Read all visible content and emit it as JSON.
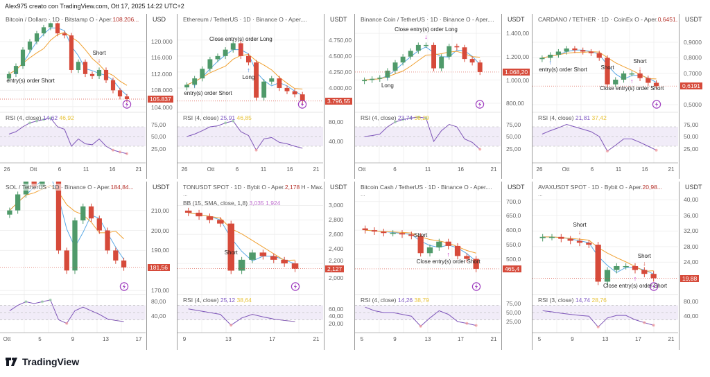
{
  "credit": "Alex975 creato con TradingView.com, Ott 17, 2025 14:22 UTC+2",
  "logo": {
    "text": "TradingView"
  },
  "colors": {
    "up": "#4f9a6a",
    "down": "#d64a3a",
    "rsi": "#7e57c2",
    "rsi_ma": "#e8c33a",
    "ma_fast": "#5aa9e6",
    "ma_slow": "#f0a030",
    "last_price_bg": "#d64a3a"
  },
  "chart_data": [
    {
      "type": "candlestick",
      "title": "Bitcoin / Dollaro · 1D · Bitstamp  O - Aper.",
      "open_value": "108.206...",
      "currency": "USD",
      "last_label": "105.837",
      "last": 105837,
      "closes": [
        112000,
        114000,
        118000,
        120000,
        122000,
        123500,
        124500,
        122000,
        121500,
        113000,
        115000,
        112000,
        111500,
        113000,
        110500,
        108000,
        106500,
        105837
      ],
      "ylim": [
        102600,
        126800
      ],
      "ticks": [
        {
          "v": 120000,
          "l": "120.000"
        },
        {
          "v": 116000,
          "l": "116.000"
        },
        {
          "v": 112000,
          "l": "112.000"
        },
        {
          "v": 108000,
          "l": "108.000"
        },
        {
          "v": 104000,
          "l": "104.000"
        }
      ],
      "rsi": {
        "label": "RSI (4, close)",
        "v1": "14,62",
        "v2": "46,92",
        "ticks": [
          {
            "v": 75,
            "l": "75,00"
          },
          {
            "v": 50,
            "l": "50,00"
          },
          {
            "v": 25,
            "l": "25,00"
          }
        ],
        "values": [
          55,
          60,
          70,
          78,
          82,
          85,
          88,
          70,
          65,
          30,
          45,
          35,
          33,
          45,
          30,
          22,
          18,
          14.62
        ]
      },
      "xticks": [
        "26",
        "Ott",
        "6",
        "11",
        "16",
        "21"
      ],
      "annotations": [
        {
          "text": "Short",
          "i": 13,
          "pos": "above"
        },
        {
          "text": "entry(s) order Short",
          "i": 1,
          "pos": "below"
        }
      ]
    },
    {
      "type": "candlestick",
      "title": "Ethereum / TetherUS · 1D · Binance  O - Aper....",
      "open_value": "",
      "currency": "USDT",
      "last_label": "3.796,55",
      "last": 3796.55,
      "closes": [
        4050,
        4150,
        4300,
        4450,
        4500,
        4600,
        4700,
        4500,
        4400,
        3850,
        4100,
        4150,
        4000,
        3950,
        3900,
        3796.55
      ],
      "ylim": [
        3620,
        5160
      ],
      "ticks": [
        {
          "v": 4750,
          "l": "4.750,00"
        },
        {
          "v": 4500,
          "l": "4.500,00"
        },
        {
          "v": 4250,
          "l": "4.250,00"
        },
        {
          "v": 4000,
          "l": "4.000,00"
        }
      ],
      "rsi": {
        "label": "RSI (4, close)",
        "v1": "25,91",
        "v2": "46,85",
        "ticks": [
          {
            "v": 80,
            "l": "80,00"
          },
          {
            "v": 40,
            "l": "40,00"
          }
        ],
        "values": [
          50,
          55,
          62,
          70,
          72,
          78,
          82,
          60,
          52,
          22,
          45,
          48,
          38,
          35,
          30,
          25.91
        ]
      },
      "xticks": [
        "26",
        "Ott",
        "6",
        "11",
        "16",
        "21"
      ],
      "annotations": [
        {
          "text": "Close entry(s) order Long",
          "i": 7,
          "pos": "above"
        },
        {
          "text": "Long",
          "i": 8,
          "pos": "below"
        },
        {
          "text": "entry(s) order Short",
          "i": 1,
          "pos": "below"
        }
      ]
    },
    {
      "type": "candlestick",
      "title": "Binance Coin / TetherUS · 1D · Binance  O - Aper....",
      "open_value": "",
      "currency": "USDT",
      "last_label": "1.068,20",
      "last": 1068.2,
      "closes": [
        1000,
        1010,
        1020,
        1080,
        1150,
        1200,
        1250,
        1300,
        1300,
        1100,
        1200,
        1290,
        1280,
        1180,
        1150,
        1068.2
      ],
      "ylim": [
        723,
        1567
      ],
      "ticks": [
        {
          "v": 1400,
          "l": "1.400,00"
        },
        {
          "v": 1200,
          "l": "1.200,00"
        },
        {
          "v": 1000,
          "l": "1.000,00"
        },
        {
          "v": 800,
          "l": "800,00"
        }
      ],
      "rsi": {
        "label": "RSI (4, close)",
        "v1": "23,74",
        "v2": "38,29",
        "ticks": [
          {
            "v": 75,
            "l": "75,00"
          },
          {
            "v": 50,
            "l": "50,00"
          },
          {
            "v": 25,
            "l": "25,00"
          }
        ],
        "values": [
          50,
          52,
          55,
          70,
          80,
          85,
          88,
          90,
          88,
          40,
          62,
          75,
          70,
          45,
          38,
          23.74
        ]
      },
      "xticks": [
        "Ott",
        "6",
        "11",
        "16",
        "21"
      ],
      "annotations": [
        {
          "text": "Close entry(s) order Long",
          "i": 8,
          "pos": "above"
        },
        {
          "text": "Long",
          "i": 3,
          "pos": "below"
        }
      ]
    },
    {
      "type": "candlestick",
      "title": "CARDANO / TETHER · 1D · CoinEx  O - Aper.",
      "open_value": "0,6451...",
      "currency": "USDT",
      "last_label": "0,6191",
      "last": 0.6191,
      "closes": [
        0.8,
        0.82,
        0.84,
        0.86,
        0.85,
        0.84,
        0.83,
        0.8,
        0.63,
        0.66,
        0.7,
        0.7,
        0.67,
        0.64,
        0.6191
      ],
      "ylim": [
        0.451,
        1.082
      ],
      "ticks": [
        {
          "v": 0.9,
          "l": "0,9000"
        },
        {
          "v": 0.8,
          "l": "0,8000"
        },
        {
          "v": 0.7,
          "l": "0,7000"
        },
        {
          "v": 0.5,
          "l": "0,5000"
        }
      ],
      "rsi": {
        "label": "RSI (4, close)",
        "v1": "21,81",
        "v2": "37,42",
        "ticks": [
          {
            "v": 75,
            "l": "75,00"
          },
          {
            "v": 50,
            "l": "50,00"
          },
          {
            "v": 25,
            "l": "25,00"
          }
        ],
        "values": [
          55,
          62,
          68,
          75,
          70,
          65,
          60,
          50,
          20,
          32,
          45,
          45,
          38,
          30,
          21.81
        ]
      },
      "xticks": [
        "26",
        "Ott",
        "6",
        "11",
        "16",
        "21"
      ],
      "annotations": [
        {
          "text": "Short",
          "i": 8,
          "pos": "above"
        },
        {
          "text": "Short",
          "i": 12,
          "pos": "above"
        },
        {
          "text": "entry(s) order Short",
          "i": 1,
          "pos": "below"
        },
        {
          "text": "Close entry(s) order Short",
          "i": 11,
          "pos": "below"
        }
      ]
    },
    {
      "type": "candlestick",
      "title": "SOL / TetherUS · 1D · Binance  O - Aper.",
      "open_value": "184,84...",
      "currency": "USDT",
      "last_label": "181,56",
      "last": 181.56,
      "closes": [
        210,
        218,
        225,
        222,
        228,
        232,
        190,
        180,
        205,
        212,
        206,
        200,
        190,
        185,
        181.56
      ],
      "ylim": [
        168,
        224.4
      ],
      "ticks": [
        {
          "v": 210,
          "l": "210,00"
        },
        {
          "v": 200,
          "l": "200,00"
        },
        {
          "v": 190,
          "l": "190,00"
        },
        {
          "v": 170,
          "l": "170,00"
        }
      ],
      "rsi": {
        "label": "",
        "v1": "",
        "v2": "",
        "ticks": [
          {
            "v": 80,
            "l": "80,00"
          },
          {
            "v": 40,
            "l": "40,00"
          }
        ],
        "values": [
          55,
          70,
          80,
          75,
          80,
          85,
          30,
          20,
          55,
          65,
          55,
          45,
          32,
          28,
          25
        ]
      },
      "xticks": [
        "Ott",
        "5",
        "9",
        "13",
        "17"
      ],
      "ellipsis": "",
      "annotations": []
    },
    {
      "type": "candlestick",
      "title": "TONUSDT SPOT · 1D · Bybit  O - Aper.",
      "open_value": "2,178",
      "title_suffix": " H - Max...",
      "currency": "USDT",
      "last_label": "2,127",
      "last": 2.127,
      "closes": [
        2.9,
        2.85,
        2.8,
        2.75,
        2.1,
        2.25,
        2.35,
        2.3,
        2.25,
        2.2,
        2.127
      ],
      "ylim": [
        1.77,
        3.33
      ],
      "ticks": [
        {
          "v": 3.0,
          "l": "3,000"
        },
        {
          "v": 2.8,
          "l": "2,800"
        },
        {
          "v": 2.6,
          "l": "2,600"
        },
        {
          "v": 2.4,
          "l": "2,400"
        },
        {
          "v": 2.2,
          "l": "2,200"
        },
        {
          "v": 2.0,
          "l": "2,000"
        }
      ],
      "bb_label": "BB (15, SMA, close, 1,8)",
      "bb_v1": "3,035",
      "bb_v2": "1,924",
      "rsi": {
        "label": "RSI (4, close)",
        "v1": "25,12",
        "v2": "38,64",
        "ticks": [
          {
            "v": 60,
            "l": "60,00"
          },
          {
            "v": 40,
            "l": "40,00"
          },
          {
            "v": 20,
            "l": "20,00"
          }
        ],
        "values": [
          60,
          55,
          50,
          45,
          15,
          35,
          45,
          38,
          32,
          28,
          25.12
        ]
      },
      "xticks": [
        "9",
        "13",
        "17",
        "21"
      ],
      "ellipsis": "...",
      "annotations": [
        {
          "text": "Short",
          "i": 4,
          "pos": "above"
        }
      ]
    },
    {
      "type": "candlestick",
      "title": "Bitcoin Cash / TetherUS · 1D · Binance  O - Aper....",
      "open_value": "",
      "currency": "USDT",
      "last_label": "465,4",
      "last": 465.4,
      "closes": [
        600,
        595,
        590,
        590,
        585,
        580,
        520,
        540,
        560,
        545,
        510,
        500,
        465.4
      ],
      "ylim": [
        376,
        769
      ],
      "ticks": [
        {
          "v": 700,
          "l": "700,0"
        },
        {
          "v": 650,
          "l": "650,0"
        },
        {
          "v": 600,
          "l": "600,0"
        },
        {
          "v": 550,
          "l": "550,0"
        },
        {
          "v": 500,
          "l": "500,0"
        }
      ],
      "rsi": {
        "label": "RSI (4, close)",
        "v1": "14,26",
        "v2": "38,79",
        "ticks": [
          {
            "v": 75,
            "l": "75,00"
          },
          {
            "v": 50,
            "l": "50,00"
          },
          {
            "v": 25,
            "l": "25,00"
          }
        ],
        "values": [
          65,
          55,
          50,
          50,
          45,
          40,
          12,
          35,
          55,
          45,
          25,
          20,
          14.26
        ]
      },
      "xticks": [
        "5",
        "9",
        "13",
        "17",
        "21"
      ],
      "ellipsis": "...",
      "annotations": [
        {
          "text": "Short",
          "i": 6,
          "pos": "above"
        },
        {
          "text": "Close entry(s) order Short",
          "i": 9,
          "pos": "below"
        }
      ]
    },
    {
      "type": "candlestick",
      "title": "AVAXUSDT SPOT · 1D · Bybit  O - Aper.",
      "open_value": "20,98...",
      "currency": "USDT",
      "last_label": "19,88",
      "last": 19.88,
      "closes": [
        30.5,
        30.5,
        30,
        29.5,
        29,
        28.5,
        19,
        22,
        23,
        23,
        22,
        21,
        19.88
      ],
      "ylim": [
        15.7,
        44.7
      ],
      "ticks": [
        {
          "v": 40,
          "l": "40,00"
        },
        {
          "v": 36,
          "l": "36,00"
        },
        {
          "v": 32,
          "l": "32,00"
        },
        {
          "v": 28,
          "l": "28,00"
        },
        {
          "v": 24,
          "l": "24,00"
        }
      ],
      "rsi": {
        "label": "RSI (3, close)",
        "v1": "14,74",
        "v2": "28,76",
        "ticks": [
          {
            "v": 80,
            "l": "80,00"
          },
          {
            "v": 40,
            "l": "40,00"
          }
        ],
        "values": [
          55,
          52,
          48,
          45,
          42,
          40,
          10,
          35,
          42,
          42,
          30,
          22,
          14.74
        ]
      },
      "xticks": [
        "5",
        "9",
        "13",
        "17",
        "21"
      ],
      "ellipsis": "...",
      "annotations": [
        {
          "text": "Short",
          "i": 4,
          "pos": "above"
        },
        {
          "text": "Short",
          "i": 11,
          "pos": "above"
        },
        {
          "text": "Close entry(s) order Short",
          "i": 10,
          "pos": "below"
        }
      ]
    }
  ]
}
